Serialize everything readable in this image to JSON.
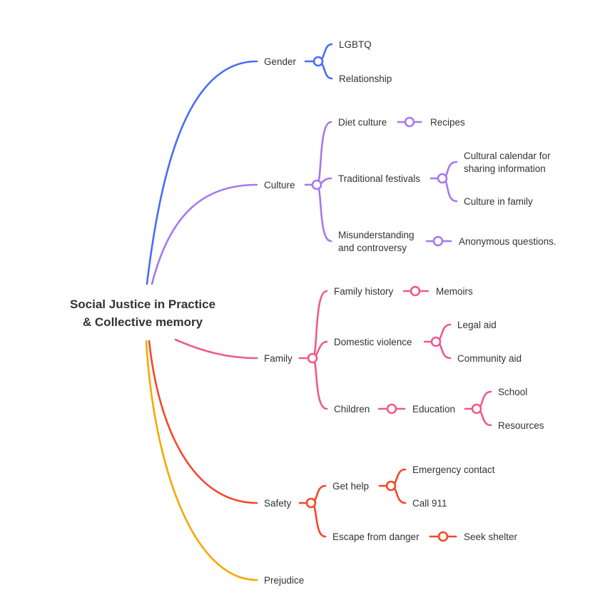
{
  "root": {
    "line1": "Social Justice in Practice",
    "line2": "& Collective memory"
  },
  "colors": {
    "gender": "#4a6cf7",
    "culture": "#a678f0",
    "family": "#ee5a8c",
    "safety": "#f5462a",
    "prejudice": "#f5a800"
  },
  "branches": {
    "gender": {
      "label": "Gender",
      "children": [
        "LGBTQ",
        "Relationship"
      ]
    },
    "culture": {
      "label": "Culture",
      "diet": {
        "label": "Diet culture",
        "child": "Recipes"
      },
      "festivals": {
        "label": "Traditional festivals",
        "calendar_line1": "Cultural calendar for",
        "calendar_line2": "sharing information",
        "family": "Culture in family"
      },
      "misunderstanding": {
        "line1": "Misunderstanding",
        "line2": "and controversy",
        "child": "Anonymous questions."
      }
    },
    "family": {
      "label": "Family",
      "history": {
        "label": "Family history",
        "child": "Memoirs"
      },
      "violence": {
        "label": "Domestic violence",
        "children": [
          "Legal aid",
          "Community aid"
        ]
      },
      "children": {
        "label": "Children",
        "education": "Education",
        "education_children": [
          "School",
          "Resources"
        ]
      }
    },
    "safety": {
      "label": "Safety",
      "help": {
        "label": "Get help",
        "children": [
          "Emergency contact",
          "Call 911"
        ]
      },
      "escape": {
        "label": "Escape from danger",
        "child": "Seek shelter"
      }
    },
    "prejudice": {
      "label": "Prejudice"
    }
  }
}
